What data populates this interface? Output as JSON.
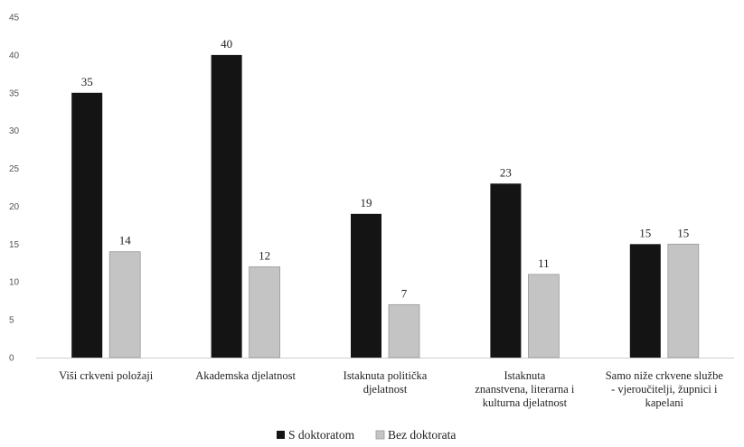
{
  "chart_data": {
    "type": "bar",
    "title": "",
    "xlabel": "",
    "ylabel": "",
    "ylim": [
      0,
      45
    ],
    "yticks": [
      0,
      5,
      10,
      15,
      20,
      25,
      30,
      35,
      40,
      45
    ],
    "grid": false,
    "legend_position": "bottom",
    "categories": [
      [
        "Viši crkveni položaji"
      ],
      [
        "Akademska djelatnost"
      ],
      [
        "Istaknuta politička",
        "djelatnost"
      ],
      [
        "Istaknuta",
        "znanstvena, literarna i",
        "kulturna djelatnost"
      ],
      [
        "Samo niže crkvene službe",
        "- vjeroučitelji, župnici i",
        "kapelani"
      ]
    ],
    "series": [
      {
        "name": "S doktoratom",
        "color": "#141414",
        "values": [
          35,
          40,
          19,
          23,
          15
        ]
      },
      {
        "name": "Bez doktorata",
        "color": "#c4c4c4",
        "values": [
          14,
          12,
          7,
          11,
          15
        ]
      }
    ]
  }
}
